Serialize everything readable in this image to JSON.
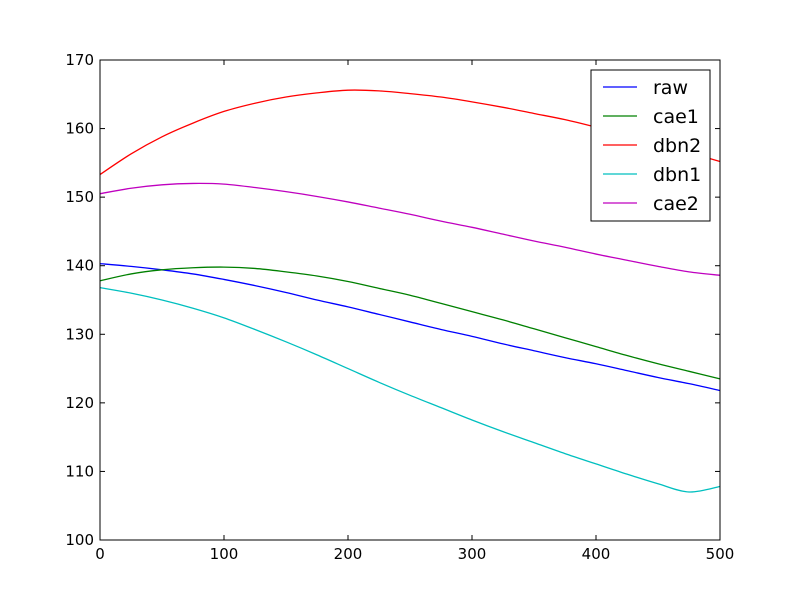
{
  "chart_data": {
    "type": "line",
    "title": "",
    "xlabel": "",
    "ylabel": "",
    "xlim": [
      0,
      500
    ],
    "ylim": [
      100,
      170
    ],
    "xticks": [
      0,
      100,
      200,
      300,
      400,
      500
    ],
    "yticks": [
      100,
      110,
      120,
      130,
      140,
      150,
      160,
      170
    ],
    "grid": false,
    "legend": "top-right",
    "x": [
      0,
      25,
      50,
      75,
      100,
      125,
      150,
      175,
      200,
      225,
      250,
      275,
      300,
      325,
      350,
      375,
      400,
      425,
      450,
      475,
      500
    ],
    "series": [
      {
        "name": "raw",
        "color": "#0000ff",
        "values": [
          140.3,
          139.9,
          139.4,
          138.8,
          138.0,
          137.1,
          136.1,
          135.0,
          134.0,
          132.9,
          131.8,
          130.7,
          129.7,
          128.6,
          127.6,
          126.6,
          125.7,
          124.7,
          123.7,
          122.8,
          121.8
        ]
      },
      {
        "name": "cae1",
        "color": "#008000",
        "values": [
          137.8,
          138.8,
          139.4,
          139.7,
          139.8,
          139.6,
          139.1,
          138.5,
          137.7,
          136.7,
          135.7,
          134.5,
          133.3,
          132.1,
          130.8,
          129.5,
          128.2,
          126.9,
          125.7,
          124.6,
          123.5
        ]
      },
      {
        "name": "dbn2",
        "color": "#ff0000",
        "values": [
          153.3,
          156.3,
          158.8,
          160.8,
          162.5,
          163.7,
          164.6,
          165.2,
          165.6,
          165.5,
          165.1,
          164.6,
          163.9,
          163.1,
          162.2,
          161.3,
          160.2,
          159.0,
          157.8,
          156.5,
          155.2
        ]
      },
      {
        "name": "dbn1",
        "color": "#00bfbf",
        "values": [
          136.8,
          136.0,
          135.0,
          133.8,
          132.4,
          130.7,
          128.9,
          127.0,
          125.0,
          123.0,
          121.1,
          119.3,
          117.5,
          115.8,
          114.2,
          112.6,
          111.1,
          109.6,
          108.2,
          107.0,
          107.8
        ]
      },
      {
        "name": "cae2",
        "color": "#bf00bf",
        "values": [
          150.5,
          151.3,
          151.8,
          152.0,
          151.9,
          151.4,
          150.8,
          150.1,
          149.3,
          148.4,
          147.5,
          146.5,
          145.6,
          144.6,
          143.6,
          142.7,
          141.7,
          140.8,
          139.9,
          139.1,
          138.6
        ]
      }
    ]
  }
}
